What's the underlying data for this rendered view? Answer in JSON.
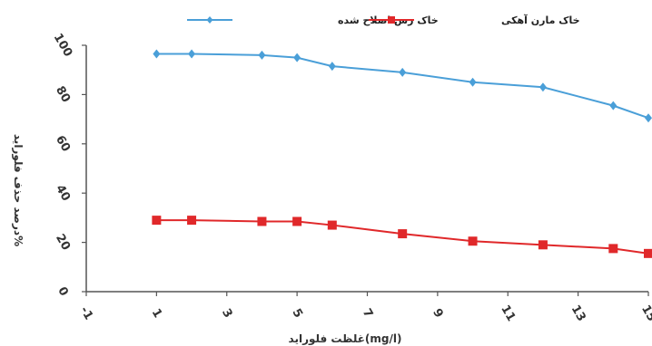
{
  "chart_data": {
    "type": "line",
    "title": "",
    "xlabel": "غلظت فلوراید(mg/l)",
    "ylabel": "درصد حذف فلوراید%",
    "xlim": [
      -1,
      15
    ],
    "ylim": [
      0,
      100
    ],
    "x_ticks": [
      "-1",
      "1",
      "3",
      "5",
      "7",
      "9",
      "11",
      "13",
      "15"
    ],
    "y_ticks": [
      "0",
      "20",
      "40",
      "60",
      "80",
      "100"
    ],
    "grid": false,
    "legend_position": "top-center",
    "series": [
      {
        "name": "خاک رس اصلاح شده",
        "color": "#4a9fd8",
        "marker": "diamond",
        "x": [
          1,
          2,
          4,
          5,
          6,
          8,
          10,
          12,
          14,
          15
        ],
        "y": [
          96.5,
          96.5,
          96.0,
          95.0,
          91.5,
          89.0,
          85.0,
          83.0,
          75.5,
          70.5
        ]
      },
      {
        "name": "خاک مارن آهکی",
        "color": "#e0282a",
        "marker": "square",
        "x": [
          1,
          2,
          4,
          5,
          6,
          8,
          10,
          12,
          14,
          15
        ],
        "y": [
          29.0,
          29.0,
          28.5,
          28.5,
          27.0,
          23.5,
          20.5,
          19.0,
          17.5,
          15.5
        ]
      }
    ]
  }
}
